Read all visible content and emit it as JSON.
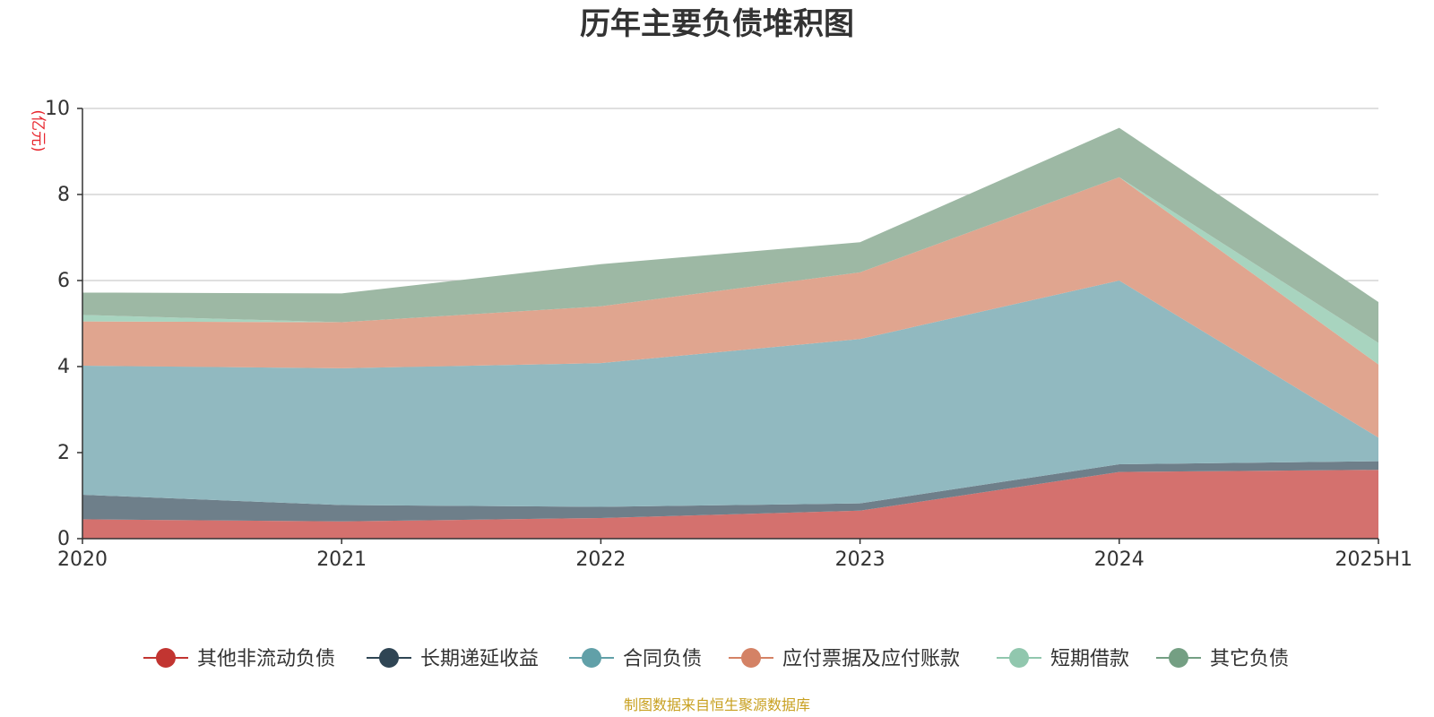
{
  "chart_data": {
    "type": "area",
    "stacked": true,
    "title": "历年主要负债堆积图",
    "unit_label": "(亿元)",
    "categories": [
      "2020",
      "2021",
      "2022",
      "2023",
      "2024",
      "2025H1"
    ],
    "ylim": [
      0,
      10
    ],
    "yticks": [
      0,
      2,
      4,
      6,
      8,
      10
    ],
    "grid": true,
    "legend_position": "bottom",
    "series": [
      {
        "name": "其他非流动负债",
        "color": "#c23531",
        "fill": "#d4716e",
        "values": [
          0.45,
          0.4,
          0.48,
          0.65,
          1.55,
          1.6
        ]
      },
      {
        "name": "长期递延收益",
        "color": "#2f4554",
        "fill": "#6e7f8a",
        "values": [
          0.57,
          0.38,
          0.26,
          0.17,
          0.18,
          0.2
        ]
      },
      {
        "name": "合同负债",
        "color": "#61a0a8",
        "fill": "#91b9c0",
        "values": [
          3.0,
          3.18,
          3.34,
          3.82,
          4.27,
          0.55
        ]
      },
      {
        "name": "应付票据及应付账款",
        "color": "#d48265",
        "fill": "#e0a58f",
        "values": [
          1.03,
          1.07,
          1.32,
          1.55,
          2.4,
          1.7
        ]
      },
      {
        "name": "短期借款",
        "color": "#91c7ae",
        "fill": "#a8d4bf",
        "values": [
          0.15,
          0.0,
          0.0,
          0.0,
          0.0,
          0.5
        ]
      },
      {
        "name": "其它负债",
        "color": "#749f83",
        "fill": "#9db8a4",
        "values": [
          0.52,
          0.67,
          0.98,
          0.7,
          1.15,
          0.95
        ]
      }
    ]
  },
  "source_text": "制图数据来自恒生聚源数据库"
}
